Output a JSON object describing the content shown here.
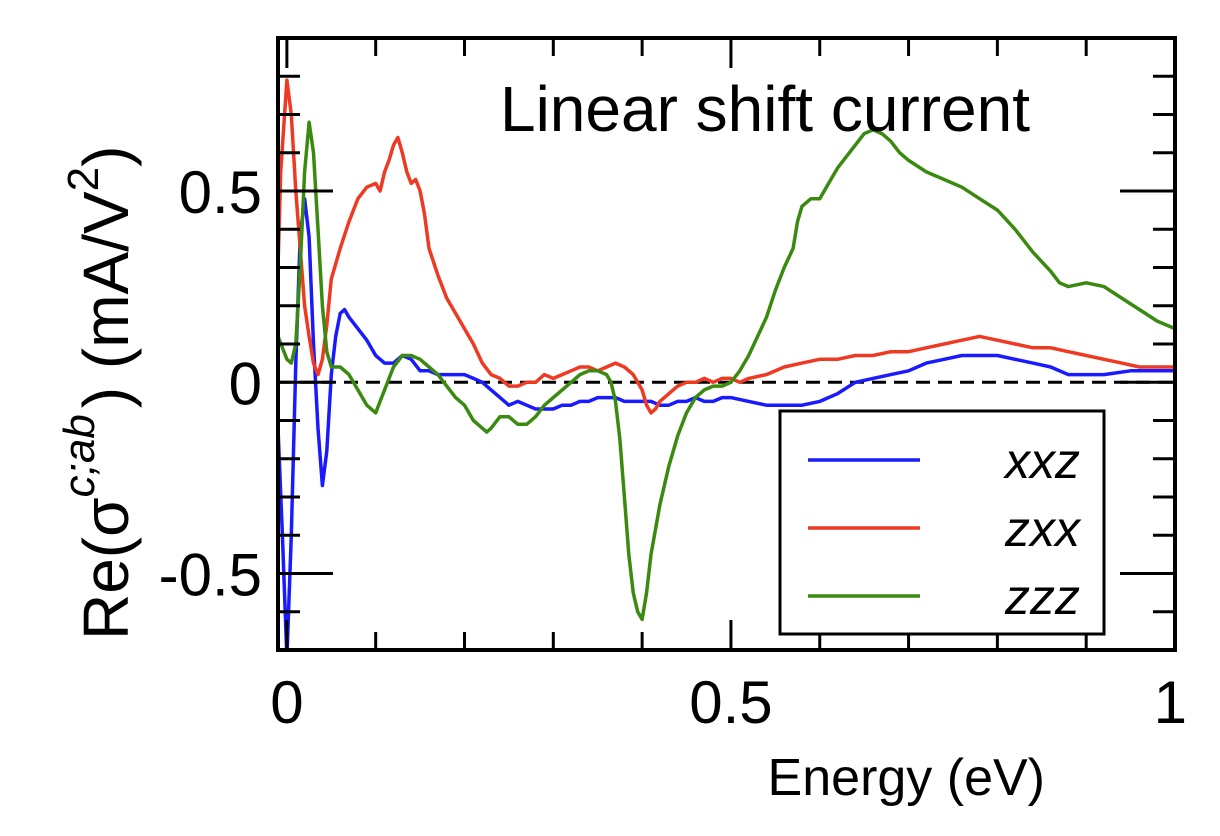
{
  "chart_data": {
    "type": "line",
    "title": "Linear shift current",
    "xlabel": "Energy (eV)",
    "ylabel": {
      "prefix": "Re(σ",
      "superscript": "c;ab",
      "suffix": ") (mA/V",
      "unit_power": "2",
      "close": ")"
    },
    "xlim": [
      -0.01,
      1.0
    ],
    "ylim": [
      -0.7,
      0.9
    ],
    "x_ticks": [
      {
        "value": 0,
        "label": "0"
      },
      {
        "value": 0.5,
        "label": "0.5"
      },
      {
        "value": 1,
        "label": "1"
      }
    ],
    "y_ticks": [
      {
        "value": -0.5,
        "label": "-0.5"
      },
      {
        "value": 0,
        "label": "0"
      },
      {
        "value": 0.5,
        "label": "0.5"
      }
    ],
    "zero_line": true,
    "grid": false,
    "legend_position": "bottom-right",
    "series": [
      {
        "name": "xxz",
        "color": "#1a1aff",
        "points": [
          [
            -0.01,
            -0.12
          ],
          [
            -0.005,
            -0.4
          ],
          [
            0.0,
            -0.72
          ],
          [
            0.005,
            -0.4
          ],
          [
            0.01,
            0.05
          ],
          [
            0.015,
            0.38
          ],
          [
            0.02,
            0.48
          ],
          [
            0.025,
            0.38
          ],
          [
            0.03,
            0.1
          ],
          [
            0.035,
            -0.12
          ],
          [
            0.04,
            -0.27
          ],
          [
            0.045,
            -0.18
          ],
          [
            0.05,
            0.02
          ],
          [
            0.055,
            0.12
          ],
          [
            0.06,
            0.18
          ],
          [
            0.065,
            0.19
          ],
          [
            0.07,
            0.17
          ],
          [
            0.08,
            0.14
          ],
          [
            0.09,
            0.11
          ],
          [
            0.1,
            0.07
          ],
          [
            0.11,
            0.05
          ],
          [
            0.12,
            0.05
          ],
          [
            0.13,
            0.07
          ],
          [
            0.14,
            0.06
          ],
          [
            0.15,
            0.03
          ],
          [
            0.16,
            0.03
          ],
          [
            0.17,
            0.02
          ],
          [
            0.18,
            0.02
          ],
          [
            0.19,
            0.02
          ],
          [
            0.2,
            0.02
          ],
          [
            0.21,
            0.01
          ],
          [
            0.22,
            0.0
          ],
          [
            0.23,
            -0.02
          ],
          [
            0.24,
            -0.04
          ],
          [
            0.25,
            -0.06
          ],
          [
            0.26,
            -0.05
          ],
          [
            0.27,
            -0.06
          ],
          [
            0.28,
            -0.07
          ],
          [
            0.29,
            -0.07
          ],
          [
            0.3,
            -0.07
          ],
          [
            0.31,
            -0.06
          ],
          [
            0.32,
            -0.06
          ],
          [
            0.33,
            -0.05
          ],
          [
            0.34,
            -0.05
          ],
          [
            0.35,
            -0.04
          ],
          [
            0.36,
            -0.04
          ],
          [
            0.37,
            -0.04
          ],
          [
            0.38,
            -0.05
          ],
          [
            0.39,
            -0.05
          ],
          [
            0.4,
            -0.05
          ],
          [
            0.41,
            -0.05
          ],
          [
            0.42,
            -0.06
          ],
          [
            0.43,
            -0.06
          ],
          [
            0.44,
            -0.05
          ],
          [
            0.45,
            -0.05
          ],
          [
            0.46,
            -0.04
          ],
          [
            0.47,
            -0.05
          ],
          [
            0.48,
            -0.05
          ],
          [
            0.49,
            -0.04
          ],
          [
            0.5,
            -0.04
          ],
          [
            0.52,
            -0.05
          ],
          [
            0.54,
            -0.06
          ],
          [
            0.56,
            -0.06
          ],
          [
            0.58,
            -0.06
          ],
          [
            0.6,
            -0.05
          ],
          [
            0.62,
            -0.03
          ],
          [
            0.64,
            0.0
          ],
          [
            0.66,
            0.01
          ],
          [
            0.68,
            0.02
          ],
          [
            0.7,
            0.03
          ],
          [
            0.72,
            0.05
          ],
          [
            0.74,
            0.06
          ],
          [
            0.76,
            0.07
          ],
          [
            0.78,
            0.07
          ],
          [
            0.8,
            0.07
          ],
          [
            0.82,
            0.06
          ],
          [
            0.84,
            0.05
          ],
          [
            0.86,
            0.04
          ],
          [
            0.88,
            0.02
          ],
          [
            0.9,
            0.02
          ],
          [
            0.92,
            0.02
          ],
          [
            0.95,
            0.03
          ],
          [
            1.0,
            0.03
          ]
        ]
      },
      {
        "name": "zxx",
        "color": "#ee3a22",
        "points": [
          [
            -0.01,
            0.3
          ],
          [
            -0.007,
            0.55
          ],
          [
            0.0,
            0.79
          ],
          [
            0.005,
            0.7
          ],
          [
            0.01,
            0.5
          ],
          [
            0.015,
            0.35
          ],
          [
            0.02,
            0.2
          ],
          [
            0.025,
            0.12
          ],
          [
            0.03,
            0.05
          ],
          [
            0.035,
            0.02
          ],
          [
            0.04,
            0.06
          ],
          [
            0.045,
            0.15
          ],
          [
            0.05,
            0.27
          ],
          [
            0.06,
            0.35
          ],
          [
            0.07,
            0.42
          ],
          [
            0.08,
            0.48
          ],
          [
            0.09,
            0.51
          ],
          [
            0.1,
            0.52
          ],
          [
            0.105,
            0.5
          ],
          [
            0.11,
            0.55
          ],
          [
            0.115,
            0.58
          ],
          [
            0.12,
            0.62
          ],
          [
            0.125,
            0.64
          ],
          [
            0.13,
            0.6
          ],
          [
            0.135,
            0.55
          ],
          [
            0.14,
            0.52
          ],
          [
            0.145,
            0.53
          ],
          [
            0.15,
            0.5
          ],
          [
            0.155,
            0.44
          ],
          [
            0.16,
            0.35
          ],
          [
            0.17,
            0.28
          ],
          [
            0.18,
            0.22
          ],
          [
            0.19,
            0.18
          ],
          [
            0.2,
            0.14
          ],
          [
            0.21,
            0.1
          ],
          [
            0.22,
            0.05
          ],
          [
            0.23,
            0.02
          ],
          [
            0.24,
            0.01
          ],
          [
            0.25,
            -0.01
          ],
          [
            0.26,
            -0.01
          ],
          [
            0.27,
            0.0
          ],
          [
            0.28,
            0.0
          ],
          [
            0.29,
            0.02
          ],
          [
            0.3,
            0.01
          ],
          [
            0.31,
            0.02
          ],
          [
            0.32,
            0.03
          ],
          [
            0.33,
            0.04
          ],
          [
            0.34,
            0.04
          ],
          [
            0.35,
            0.03
          ],
          [
            0.36,
            0.04
          ],
          [
            0.37,
            0.05
          ],
          [
            0.38,
            0.04
          ],
          [
            0.39,
            0.02
          ],
          [
            0.4,
            -0.02
          ],
          [
            0.405,
            -0.06
          ],
          [
            0.41,
            -0.08
          ],
          [
            0.415,
            -0.07
          ],
          [
            0.42,
            -0.05
          ],
          [
            0.43,
            -0.03
          ],
          [
            0.44,
            -0.01
          ],
          [
            0.45,
            0.0
          ],
          [
            0.46,
            0.0
          ],
          [
            0.47,
            0.01
          ],
          [
            0.48,
            0.0
          ],
          [
            0.49,
            0.01
          ],
          [
            0.5,
            0.01
          ],
          [
            0.51,
            0.0
          ],
          [
            0.52,
            0.01
          ],
          [
            0.54,
            0.02
          ],
          [
            0.56,
            0.04
          ],
          [
            0.58,
            0.05
          ],
          [
            0.6,
            0.06
          ],
          [
            0.62,
            0.06
          ],
          [
            0.64,
            0.07
          ],
          [
            0.66,
            0.07
          ],
          [
            0.68,
            0.08
          ],
          [
            0.7,
            0.08
          ],
          [
            0.72,
            0.09
          ],
          [
            0.74,
            0.1
          ],
          [
            0.76,
            0.11
          ],
          [
            0.78,
            0.12
          ],
          [
            0.8,
            0.11
          ],
          [
            0.82,
            0.1
          ],
          [
            0.84,
            0.09
          ],
          [
            0.86,
            0.09
          ],
          [
            0.88,
            0.08
          ],
          [
            0.9,
            0.07
          ],
          [
            0.92,
            0.06
          ],
          [
            0.94,
            0.05
          ],
          [
            0.96,
            0.04
          ],
          [
            1.0,
            0.04
          ]
        ]
      },
      {
        "name": "zzz",
        "color": "#3a8a10",
        "points": [
          [
            -0.01,
            0.12
          ],
          [
            0.0,
            0.06
          ],
          [
            0.005,
            0.05
          ],
          [
            0.01,
            0.1
          ],
          [
            0.015,
            0.3
          ],
          [
            0.02,
            0.55
          ],
          [
            0.025,
            0.68
          ],
          [
            0.03,
            0.6
          ],
          [
            0.035,
            0.4
          ],
          [
            0.04,
            0.2
          ],
          [
            0.045,
            0.08
          ],
          [
            0.05,
            0.04
          ],
          [
            0.06,
            0.04
          ],
          [
            0.07,
            0.02
          ],
          [
            0.08,
            -0.02
          ],
          [
            0.09,
            -0.06
          ],
          [
            0.1,
            -0.08
          ],
          [
            0.105,
            -0.05
          ],
          [
            0.11,
            -0.02
          ],
          [
            0.12,
            0.04
          ],
          [
            0.13,
            0.07
          ],
          [
            0.14,
            0.07
          ],
          [
            0.15,
            0.06
          ],
          [
            0.16,
            0.04
          ],
          [
            0.17,
            0.02
          ],
          [
            0.18,
            -0.01
          ],
          [
            0.19,
            -0.04
          ],
          [
            0.2,
            -0.06
          ],
          [
            0.21,
            -0.1
          ],
          [
            0.22,
            -0.12
          ],
          [
            0.225,
            -0.13
          ],
          [
            0.23,
            -0.12
          ],
          [
            0.24,
            -0.09
          ],
          [
            0.25,
            -0.09
          ],
          [
            0.26,
            -0.11
          ],
          [
            0.27,
            -0.11
          ],
          [
            0.28,
            -0.09
          ],
          [
            0.29,
            -0.06
          ],
          [
            0.3,
            -0.04
          ],
          [
            0.31,
            -0.02
          ],
          [
            0.32,
            0.0
          ],
          [
            0.33,
            0.02
          ],
          [
            0.34,
            0.03
          ],
          [
            0.35,
            0.03
          ],
          [
            0.36,
            0.02
          ],
          [
            0.365,
            0.0
          ],
          [
            0.37,
            -0.05
          ],
          [
            0.375,
            -0.15
          ],
          [
            0.38,
            -0.3
          ],
          [
            0.385,
            -0.45
          ],
          [
            0.39,
            -0.55
          ],
          [
            0.395,
            -0.6
          ],
          [
            0.4,
            -0.62
          ],
          [
            0.405,
            -0.55
          ],
          [
            0.41,
            -0.45
          ],
          [
            0.42,
            -0.32
          ],
          [
            0.43,
            -0.22
          ],
          [
            0.44,
            -0.14
          ],
          [
            0.45,
            -0.08
          ],
          [
            0.46,
            -0.04
          ],
          [
            0.47,
            -0.02
          ],
          [
            0.48,
            -0.01
          ],
          [
            0.49,
            -0.01
          ],
          [
            0.5,
            0.0
          ],
          [
            0.51,
            0.03
          ],
          [
            0.52,
            0.07
          ],
          [
            0.53,
            0.12
          ],
          [
            0.54,
            0.17
          ],
          [
            0.55,
            0.24
          ],
          [
            0.56,
            0.3
          ],
          [
            0.57,
            0.35
          ],
          [
            0.575,
            0.42
          ],
          [
            0.58,
            0.46
          ],
          [
            0.59,
            0.48
          ],
          [
            0.6,
            0.48
          ],
          [
            0.61,
            0.52
          ],
          [
            0.62,
            0.56
          ],
          [
            0.63,
            0.59
          ],
          [
            0.64,
            0.62
          ],
          [
            0.65,
            0.65
          ],
          [
            0.66,
            0.66
          ],
          [
            0.67,
            0.65
          ],
          [
            0.68,
            0.63
          ],
          [
            0.69,
            0.6
          ],
          [
            0.7,
            0.58
          ],
          [
            0.72,
            0.55
          ],
          [
            0.74,
            0.53
          ],
          [
            0.76,
            0.51
          ],
          [
            0.78,
            0.48
          ],
          [
            0.8,
            0.45
          ],
          [
            0.82,
            0.4
          ],
          [
            0.84,
            0.34
          ],
          [
            0.86,
            0.29
          ],
          [
            0.87,
            0.26
          ],
          [
            0.88,
            0.25
          ],
          [
            0.9,
            0.26
          ],
          [
            0.92,
            0.25
          ],
          [
            0.94,
            0.22
          ],
          [
            0.96,
            0.19
          ],
          [
            0.98,
            0.16
          ],
          [
            1.0,
            0.14
          ]
        ]
      }
    ]
  }
}
